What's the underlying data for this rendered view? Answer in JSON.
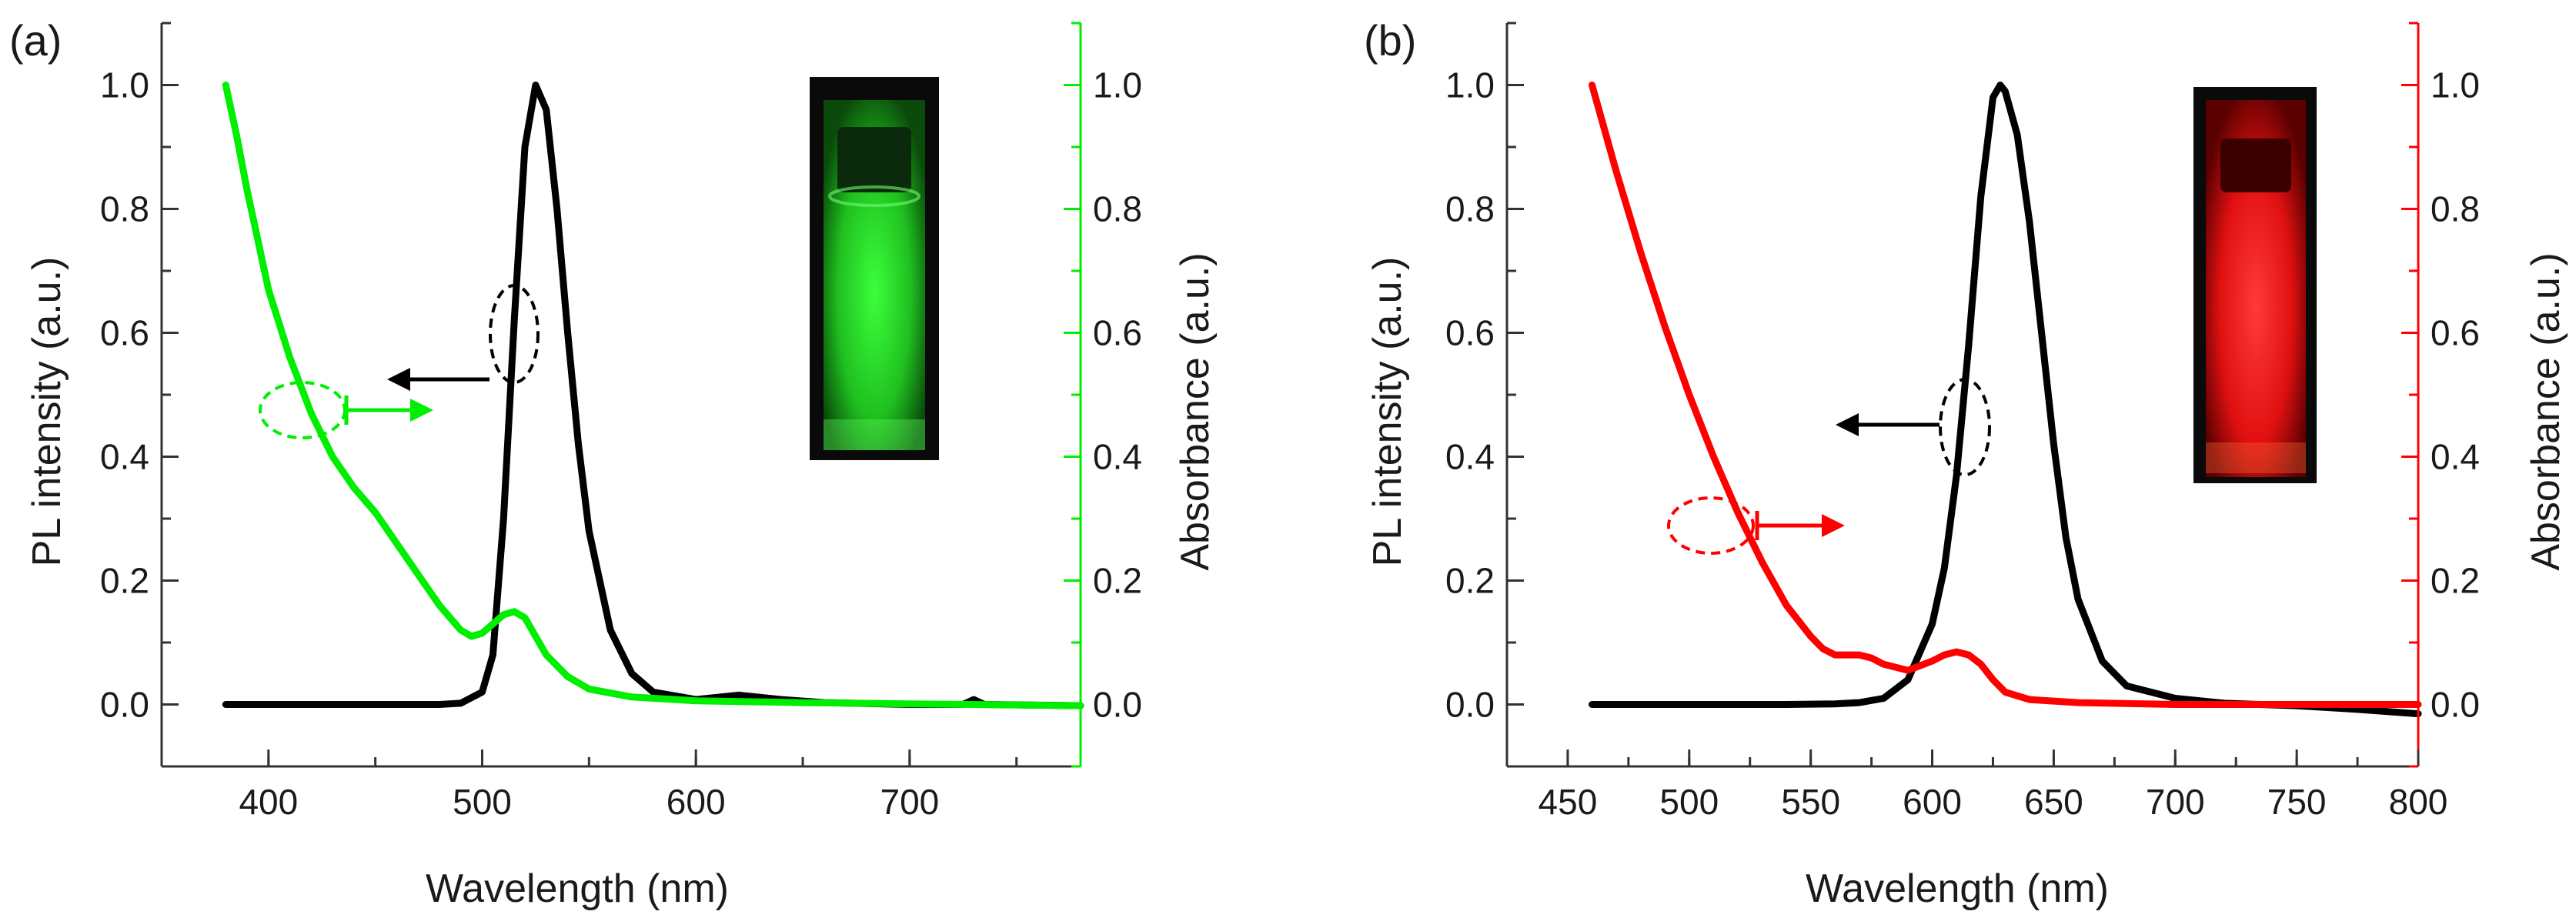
{
  "chart_data": [
    {
      "type": "line",
      "panel_label": "(a)",
      "xlabel": "Wavelength (nm)",
      "ylabel_left": "PL intensity (a.u.)",
      "ylabel_right": "Absorbance (a.u.)",
      "xlim": [
        350,
        780
      ],
      "ylim": [
        -0.1,
        1.1
      ],
      "xticks": [
        400,
        500,
        600,
        700
      ],
      "yticks": [
        0.0,
        0.2,
        0.4,
        0.6,
        0.8,
        1.0
      ],
      "accent_color": "#00ee00",
      "series": [
        {
          "name": "PL intensity",
          "axis": "left",
          "color": "#000000",
          "points": [
            [
              380,
              0.0
            ],
            [
              420,
              0.0
            ],
            [
              460,
              0.0
            ],
            [
              480,
              0.0
            ],
            [
              490,
              0.002
            ],
            [
              500,
              0.02
            ],
            [
              505,
              0.08
            ],
            [
              510,
              0.3
            ],
            [
              515,
              0.62
            ],
            [
              520,
              0.9
            ],
            [
              525,
              1.0
            ],
            [
              530,
              0.96
            ],
            [
              535,
              0.8
            ],
            [
              540,
              0.6
            ],
            [
              545,
              0.42
            ],
            [
              550,
              0.28
            ],
            [
              560,
              0.12
            ],
            [
              570,
              0.05
            ],
            [
              580,
              0.02
            ],
            [
              600,
              0.008
            ],
            [
              620,
              0.015
            ],
            [
              640,
              0.008
            ],
            [
              660,
              0.003
            ],
            [
              700,
              0.0
            ],
            [
              725,
              0.0
            ],
            [
              730,
              0.008
            ],
            [
              735,
              0.0
            ],
            [
              780,
              -0.002
            ]
          ]
        },
        {
          "name": "Absorbance",
          "axis": "right",
          "color": "#00ee00",
          "points": [
            [
              380,
              1.0
            ],
            [
              385,
              0.92
            ],
            [
              390,
              0.83
            ],
            [
              395,
              0.75
            ],
            [
              400,
              0.67
            ],
            [
              410,
              0.56
            ],
            [
              420,
              0.47
            ],
            [
              430,
              0.4
            ],
            [
              440,
              0.35
            ],
            [
              450,
              0.31
            ],
            [
              460,
              0.26
            ],
            [
              470,
              0.21
            ],
            [
              480,
              0.16
            ],
            [
              490,
              0.12
            ],
            [
              495,
              0.11
            ],
            [
              500,
              0.115
            ],
            [
              505,
              0.13
            ],
            [
              510,
              0.145
            ],
            [
              515,
              0.15
            ],
            [
              520,
              0.14
            ],
            [
              525,
              0.11
            ],
            [
              530,
              0.08
            ],
            [
              540,
              0.045
            ],
            [
              550,
              0.025
            ],
            [
              570,
              0.012
            ],
            [
              600,
              0.006
            ],
            [
              650,
              0.003
            ],
            [
              700,
              0.001
            ],
            [
              780,
              -0.002
            ]
          ]
        }
      ],
      "annotations": [
        "PL arrow pointing left",
        "Absorbance arrow pointing right"
      ],
      "inset": "green glowing cuvette"
    },
    {
      "type": "line",
      "panel_label": "(b)",
      "xlabel": "Wavelength (nm)",
      "ylabel_left": "PL intensity (a.u.)",
      "ylabel_right": "Absorbance (a.u.)",
      "xlim": [
        425,
        800
      ],
      "ylim": [
        -0.1,
        1.1
      ],
      "xticks": [
        450,
        500,
        550,
        600,
        650,
        700,
        750,
        800
      ],
      "yticks": [
        0.0,
        0.2,
        0.4,
        0.6,
        0.8,
        1.0
      ],
      "accent_color": "#ff0000",
      "series": [
        {
          "name": "PL intensity",
          "axis": "left",
          "color": "#000000",
          "points": [
            [
              460,
              0.0
            ],
            [
              500,
              0.0
            ],
            [
              540,
              0.0
            ],
            [
              560,
              0.001
            ],
            [
              570,
              0.003
            ],
            [
              580,
              0.01
            ],
            [
              590,
              0.04
            ],
            [
              600,
              0.13
            ],
            [
              605,
              0.22
            ],
            [
              610,
              0.37
            ],
            [
              615,
              0.58
            ],
            [
              620,
              0.82
            ],
            [
              625,
              0.98
            ],
            [
              628,
              1.0
            ],
            [
              630,
              0.99
            ],
            [
              635,
              0.92
            ],
            [
              640,
              0.78
            ],
            [
              645,
              0.6
            ],
            [
              650,
              0.42
            ],
            [
              655,
              0.27
            ],
            [
              660,
              0.17
            ],
            [
              670,
              0.07
            ],
            [
              680,
              0.03
            ],
            [
              700,
              0.01
            ],
            [
              720,
              0.002
            ],
            [
              750,
              -0.002
            ],
            [
              775,
              -0.008
            ],
            [
              800,
              -0.015
            ]
          ]
        },
        {
          "name": "Absorbance",
          "axis": "right",
          "color": "#ff0000",
          "points": [
            [
              460,
              1.0
            ],
            [
              465,
              0.93
            ],
            [
              470,
              0.86
            ],
            [
              480,
              0.73
            ],
            [
              490,
              0.61
            ],
            [
              500,
              0.5
            ],
            [
              510,
              0.4
            ],
            [
              520,
              0.31
            ],
            [
              530,
              0.23
            ],
            [
              540,
              0.16
            ],
            [
              550,
              0.11
            ],
            [
              555,
              0.09
            ],
            [
              560,
              0.08
            ],
            [
              570,
              0.08
            ],
            [
              575,
              0.075
            ],
            [
              580,
              0.065
            ],
            [
              590,
              0.055
            ],
            [
              600,
              0.07
            ],
            [
              605,
              0.08
            ],
            [
              610,
              0.085
            ],
            [
              615,
              0.08
            ],
            [
              620,
              0.065
            ],
            [
              625,
              0.04
            ],
            [
              630,
              0.02
            ],
            [
              640,
              0.008
            ],
            [
              660,
              0.003
            ],
            [
              700,
              0.0
            ],
            [
              740,
              0.0
            ],
            [
              770,
              0.0
            ],
            [
              800,
              0.0
            ]
          ]
        }
      ],
      "annotations": [
        "PL arrow pointing left",
        "Absorbance arrow pointing right"
      ],
      "inset": "red glowing cuvette"
    }
  ]
}
